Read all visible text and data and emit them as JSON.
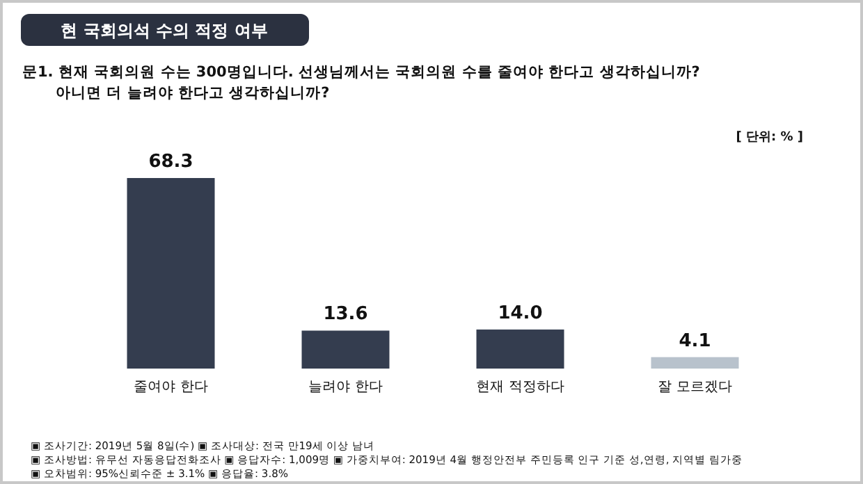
{
  "chart_data": {
    "type": "bar",
    "title": "현 국회의석 수의 적정 여부",
    "subtitle": "문1. 현재 국회의원 수는 300명입니다. 선생님께서는 국회의원 수를 줄여야 한다고 생각하십니까?\n아니면 더 늘려야 한다고 생각하십니까?",
    "ylabel": "[ 단위: % ]",
    "categories": [
      "줄여야 한다",
      "늘려야 한다",
      "현재 적정하다",
      "잘 모르겠다"
    ],
    "values": [
      68.3,
      13.6,
      14.0,
      4.1
    ],
    "value_labels": [
      "68.3",
      "13.6",
      "14.0",
      "4.1"
    ],
    "colors": [
      "#343d4f",
      "#343d4f",
      "#343d4f",
      "#b8c2cc"
    ],
    "annotations": [
      "▣ 조사기간: 2019년 5월 8일(수) ▣ 조사대상: 전국 만19세 이상 남녀",
      "▣ 조사방법: 유무선 자동응답전화조사 ▣ 응답자수: 1,009명 ▣ 가중치부여: 2019년 4월 행정안전부 주민등록 인구 기준 성,연령, 지역별 림가중",
      "▣ 오차범위: 95%신뢰수준 ± 3.1% ▣ 응답율: 3.8%"
    ]
  }
}
